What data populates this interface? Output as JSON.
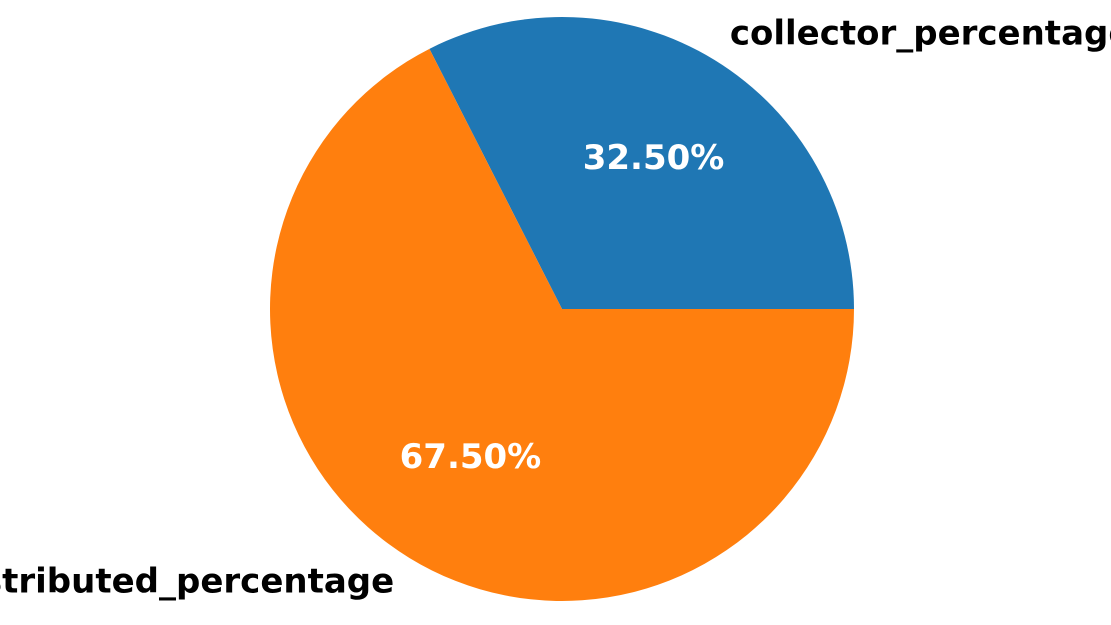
{
  "chart_data": {
    "type": "pie",
    "title": "",
    "start_angle_deg": 0,
    "direction": "counterclockwise",
    "slices": [
      {
        "label": "collector_percentage",
        "value": 32.5,
        "display": "32.50%",
        "color": "#1f77b4"
      },
      {
        "label": "distributed_percentage",
        "value": 67.5,
        "display": "67.50%",
        "color": "#ff7f0e"
      }
    ]
  }
}
